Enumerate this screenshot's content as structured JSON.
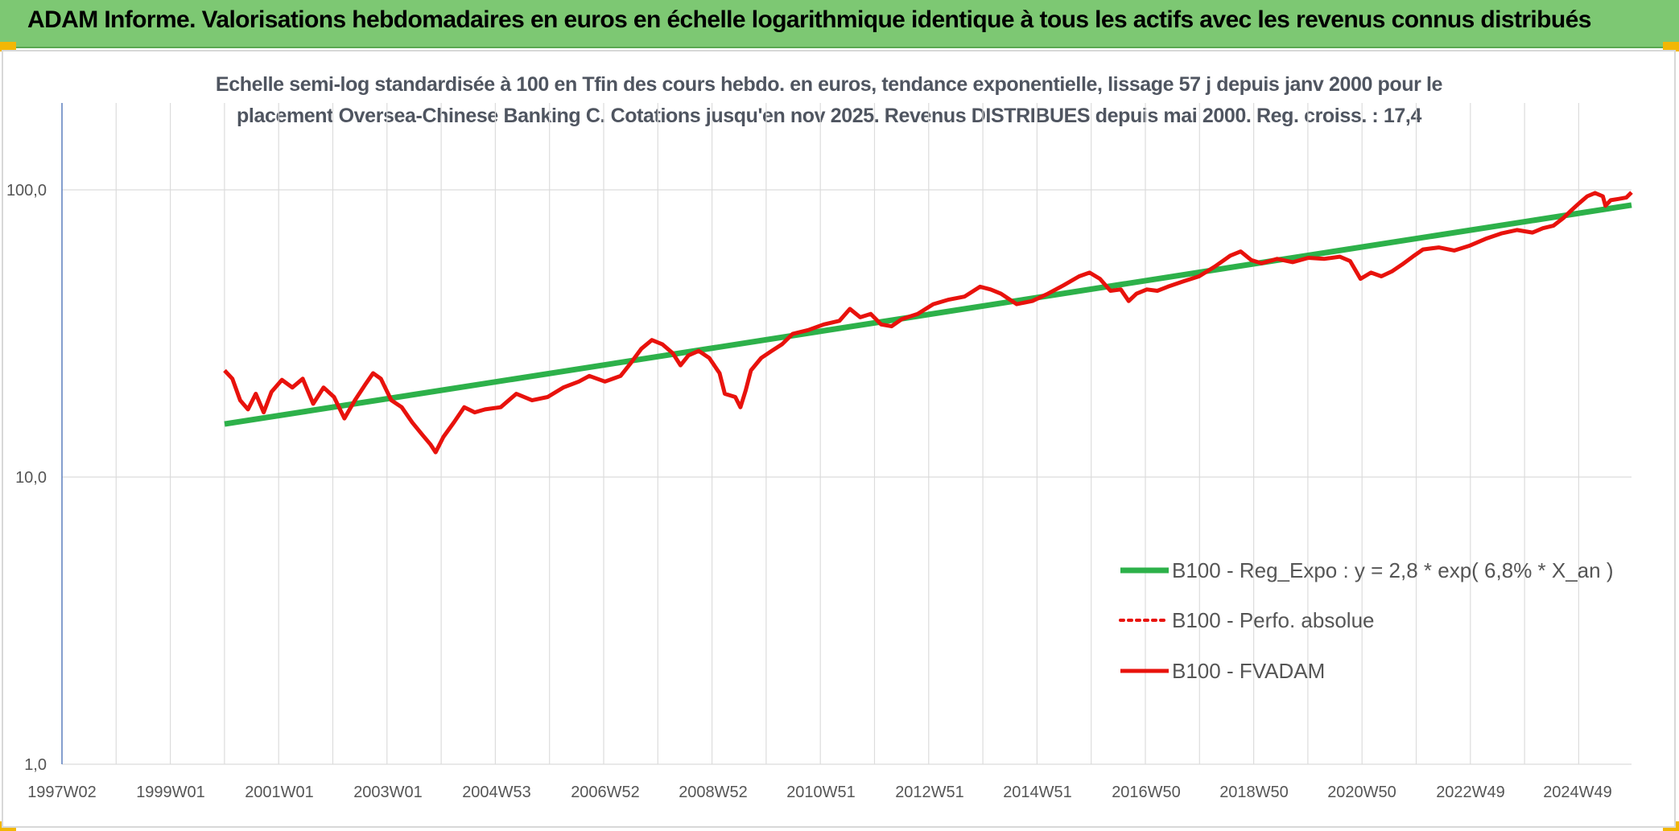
{
  "header": {
    "banner_title": "ADAM Informe. Valorisations hebdomadaires en euros en échelle logarithmique identique à tous les actifs avec les revenus connus distribués"
  },
  "colors": {
    "banner": "#7dc873",
    "trend": "#2db14a",
    "fvadam": "#e8120c",
    "perf": "#e8120c",
    "grid": "#dcdcdc",
    "axis": "#5b7fbe"
  },
  "chart_data": {
    "type": "line",
    "title_line1": "Echelle semi-log standardisée à 100 en Tfin des cours hebdo. en euros, tendance exponentielle, lissage 57 j depuis janv 2000 pour le",
    "title_line2": "placement Oversea-Chinese Banking C. Cotations jusqu'en nov 2025. Revenus DISTRIBUES depuis mai 2000. Reg. croiss. : 17,4",
    "y_scale": "log",
    "ylim": [
      1,
      200
    ],
    "xlim": [
      1997.0,
      2025.9
    ],
    "grid": true,
    "legend_position": "right-middle",
    "x_tick_labels": [
      "1997W02",
      "1999W01",
      "2001W01",
      "2003W01",
      "2004W53",
      "2006W52",
      "2008W52",
      "2010W51",
      "2012W51",
      "2014W51",
      "2016W50",
      "2018W50",
      "2020W50",
      "2022W49",
      "2024W49"
    ],
    "x_tick_years": [
      1997.0,
      1999.0,
      2001.0,
      2003.0,
      2005.0,
      2007.0,
      2009.0,
      2011.0,
      2013.0,
      2015.0,
      2017.0,
      2019.0,
      2021.0,
      2023.0,
      2025.0
    ],
    "y_ticks": [
      1,
      10,
      100
    ],
    "y_tick_labels": [
      "1,0",
      "10,0",
      "100,0"
    ],
    "series": [
      {
        "name": "B100 - Reg_Expo : y = 2,8 * exp( 6,8% *  X_an )",
        "style": "solid-thick",
        "points": [
          [
            2000.0,
            15.3
          ],
          [
            2025.9,
            88.5
          ]
        ]
      },
      {
        "name": "B100 - Perfo. absolue",
        "style": "dotted",
        "points": []
      },
      {
        "name": "B100 - FVADAM",
        "style": "solid",
        "points": [
          [
            2000.0,
            23.5
          ],
          [
            2000.15,
            22.0
          ],
          [
            2000.3,
            18.5
          ],
          [
            2000.45,
            17.2
          ],
          [
            2000.6,
            19.5
          ],
          [
            2000.75,
            16.8
          ],
          [
            2000.9,
            19.8
          ],
          [
            2001.1,
            21.8
          ],
          [
            2001.3,
            20.5
          ],
          [
            2001.5,
            22.0
          ],
          [
            2001.7,
            18.0
          ],
          [
            2001.9,
            20.5
          ],
          [
            2002.1,
            19.0
          ],
          [
            2002.3,
            16.0
          ],
          [
            2002.5,
            18.5
          ],
          [
            2002.7,
            21.0
          ],
          [
            2002.85,
            23.0
          ],
          [
            2003.0,
            22.0
          ],
          [
            2003.2,
            18.5
          ],
          [
            2003.4,
            17.5
          ],
          [
            2003.6,
            15.5
          ],
          [
            2003.8,
            14.0
          ],
          [
            2003.95,
            13.0
          ],
          [
            2004.05,
            12.2
          ],
          [
            2004.2,
            13.8
          ],
          [
            2004.4,
            15.5
          ],
          [
            2004.6,
            17.5
          ],
          [
            2004.8,
            16.8
          ],
          [
            2005.0,
            17.2
          ],
          [
            2005.3,
            17.5
          ],
          [
            2005.6,
            19.5
          ],
          [
            2005.9,
            18.5
          ],
          [
            2006.2,
            19.0
          ],
          [
            2006.5,
            20.5
          ],
          [
            2006.8,
            21.5
          ],
          [
            2007.0,
            22.5
          ],
          [
            2007.3,
            21.5
          ],
          [
            2007.6,
            22.5
          ],
          [
            2007.8,
            25.0
          ],
          [
            2008.0,
            28.0
          ],
          [
            2008.2,
            30.0
          ],
          [
            2008.4,
            29.0
          ],
          [
            2008.6,
            27.0
          ],
          [
            2008.75,
            24.5
          ],
          [
            2008.9,
            26.5
          ],
          [
            2009.1,
            27.5
          ],
          [
            2009.3,
            26.0
          ],
          [
            2009.5,
            23.0
          ],
          [
            2009.6,
            19.5
          ],
          [
            2009.8,
            19.0
          ],
          [
            2009.9,
            17.5
          ],
          [
            2010.0,
            20.0
          ],
          [
            2010.1,
            23.5
          ],
          [
            2010.3,
            26.0
          ],
          [
            2010.5,
            27.5
          ],
          [
            2010.7,
            29.0
          ],
          [
            2010.9,
            31.5
          ],
          [
            2011.2,
            32.5
          ],
          [
            2011.5,
            34.0
          ],
          [
            2011.8,
            35.0
          ],
          [
            2012.0,
            38.5
          ],
          [
            2012.2,
            36.0
          ],
          [
            2012.4,
            37.0
          ],
          [
            2012.6,
            34.0
          ],
          [
            2012.8,
            33.5
          ],
          [
            2013.0,
            35.5
          ],
          [
            2013.3,
            37.0
          ],
          [
            2013.6,
            40.0
          ],
          [
            2013.9,
            41.5
          ],
          [
            2014.2,
            42.5
          ],
          [
            2014.5,
            46.0
          ],
          [
            2014.7,
            45.0
          ],
          [
            2014.9,
            43.5
          ],
          [
            2015.2,
            40.0
          ],
          [
            2015.5,
            41.0
          ],
          [
            2015.8,
            43.5
          ],
          [
            2016.1,
            46.5
          ],
          [
            2016.4,
            50.0
          ],
          [
            2016.6,
            51.5
          ],
          [
            2016.8,
            49.0
          ],
          [
            2017.0,
            44.5
          ],
          [
            2017.2,
            45.0
          ],
          [
            2017.35,
            41.0
          ],
          [
            2017.5,
            43.5
          ],
          [
            2017.7,
            45.0
          ],
          [
            2017.9,
            44.5
          ],
          [
            2018.1,
            46.0
          ],
          [
            2018.4,
            48.0
          ],
          [
            2018.7,
            50.0
          ],
          [
            2019.0,
            54.0
          ],
          [
            2019.3,
            59.0
          ],
          [
            2019.5,
            61.0
          ],
          [
            2019.7,
            57.0
          ],
          [
            2019.9,
            55.5
          ],
          [
            2020.2,
            57.5
          ],
          [
            2020.5,
            56.0
          ],
          [
            2020.8,
            58.0
          ],
          [
            2021.1,
            57.5
          ],
          [
            2021.4,
            58.5
          ],
          [
            2021.6,
            56.5
          ],
          [
            2021.8,
            49.0
          ],
          [
            2022.0,
            51.5
          ],
          [
            2022.2,
            50.0
          ],
          [
            2022.4,
            52.0
          ],
          [
            2022.6,
            55.0
          ],
          [
            2022.8,
            58.5
          ],
          [
            2023.0,
            62.0
          ],
          [
            2023.3,
            63.0
          ],
          [
            2023.6,
            61.5
          ],
          [
            2023.9,
            64.0
          ],
          [
            2024.2,
            67.5
          ],
          [
            2024.5,
            70.5
          ],
          [
            2024.8,
            72.5
          ],
          [
            2025.1,
            71.0
          ],
          [
            2025.3,
            73.5
          ],
          [
            2025.5,
            75.0
          ],
          [
            2025.7,
            80.0
          ],
          [
            2025.85,
            85.0
          ],
          [
            2026.0,
            90.0
          ],
          [
            2026.15,
            95.0
          ],
          [
            2026.3,
            97.5
          ],
          [
            2026.45,
            95.0
          ],
          [
            2026.5,
            88.0
          ],
          [
            2026.6,
            92.0
          ],
          [
            2026.75,
            93.0
          ],
          [
            2026.9,
            94.0
          ],
          [
            2027.0,
            98.0
          ]
        ]
      }
    ]
  }
}
